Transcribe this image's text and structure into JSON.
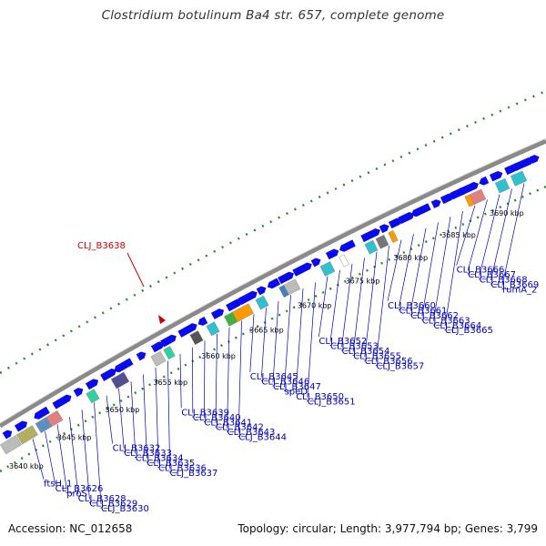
{
  "title": "Clostridium botulinum Ba4 str. 657, complete genome",
  "accession": "Accession: NC_012658",
  "summary": "Topology: circular; Length: 3,977,794 bp; Genes: 3,799",
  "highlight_label": "CLJ_B3638",
  "ticks": [
    "3640 kbp",
    "3645 kbp",
    "3650 kbp",
    "3655 kbp",
    "3660 kbp",
    "3665 kbp",
    "3670 kbp",
    "3675 kbp",
    "3680 kbp",
    "3685 kbp",
    "3690 kbp"
  ],
  "genes": [
    "ftsH_1",
    "CLJ_B3626",
    "proS",
    "CLJ_B3628",
    "CLJ_B3629",
    "CLJ_B3630",
    "CLJ_B3632",
    "CLJ_B3633",
    "CLJ_B3634",
    "CLJ_B3635",
    "CLJ_B3636",
    "CLJ_B3637",
    "CLJ_B3639",
    "CLJ_B3640",
    "CLJ_B3641",
    "CLJ_B3642",
    "CLJ_B3643",
    "CLJ_B3644",
    "CLJ_B3645",
    "CLJ_B3646",
    "CLJ_B3647",
    "speD",
    "CLJ_B3650",
    "CLJ_B3651",
    "CLJ_B3652",
    "CLJ_B3653",
    "CLJ_B3654",
    "CLJ_B3655",
    "CLJ_B3656",
    "CLJ_B3657",
    "CLJ_B3660",
    "CLJ_B3661",
    "CLJ_B3662",
    "CLJ_B3663",
    "CLJ_B3664",
    "CLJ_B3665",
    "CLJ_B3666",
    "CLJ_B3667",
    "CLJ_B3668",
    "CLJ_B3669",
    "rumA_2"
  ],
  "colors": {
    "backbone": "#888888",
    "forward_gene": "#0000ee",
    "gc_track": "#2e8b2e",
    "label": "#0000c0",
    "highlight": "#d00000"
  }
}
